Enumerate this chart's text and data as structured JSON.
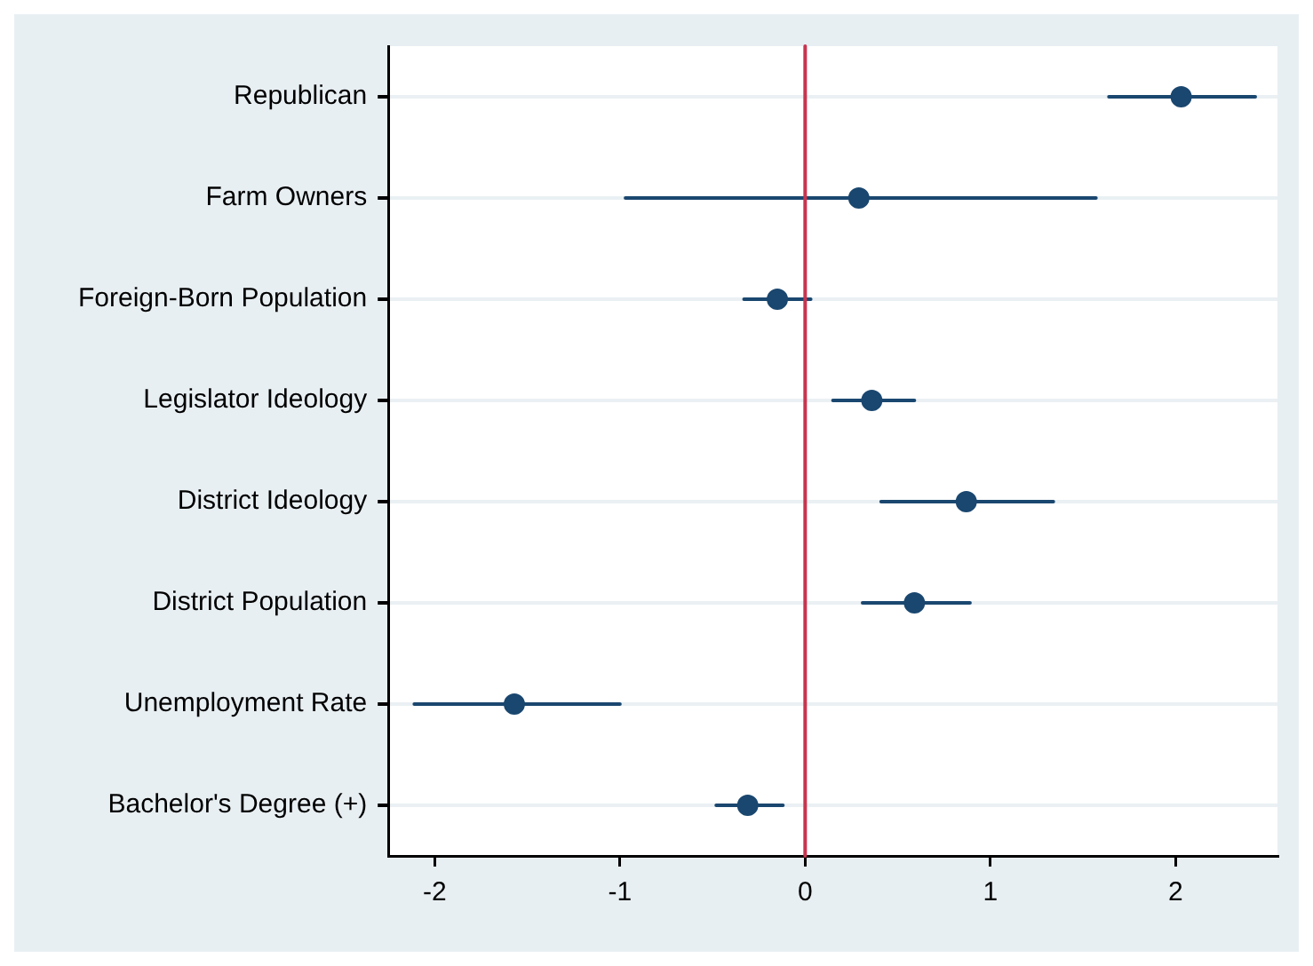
{
  "chart_data": {
    "type": "scatter",
    "orientation": "horizontal",
    "categories": [
      "Republican",
      "Farm Owners",
      "Foreign-Born Population",
      "Legislator Ideology",
      "District Ideology",
      "District Population",
      "Unemployment Rate",
      "Bachelor's Degree (+)"
    ],
    "values": [
      2.03,
      0.29,
      -0.15,
      0.36,
      0.87,
      0.59,
      -1.57,
      -0.31
    ],
    "errors": [
      [
        1.64,
        2.43
      ],
      [
        -0.97,
        1.57
      ],
      [
        -0.33,
        0.03
      ],
      [
        0.15,
        0.59
      ],
      [
        0.41,
        1.34
      ],
      [
        0.31,
        0.89
      ],
      [
        -2.11,
        -1.0
      ],
      [
        -0.48,
        -0.12
      ]
    ],
    "color": "#1a476f",
    "marker": "circle",
    "xlim": [
      -2.25,
      2.55
    ],
    "xticks": [
      -2,
      -1,
      0,
      1,
      2
    ],
    "ref_lines": [
      {
        "axis": "x",
        "value": 0,
        "color": "#c8344f"
      }
    ],
    "grid": "y",
    "legend": false
  }
}
